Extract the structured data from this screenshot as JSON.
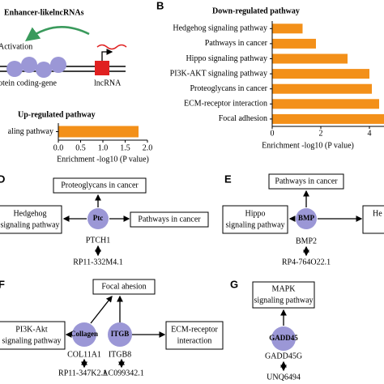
{
  "chart_data": [
    {
      "type": "barh",
      "title": "Up-regulated pathway",
      "categories": [
        "aling pathway"
      ],
      "values": [
        1.8
      ],
      "color": "#f39019",
      "xlim": [
        0,
        2
      ],
      "xticks": [
        {
          "value": 0,
          "label": "0.0"
        },
        {
          "value": 0.5,
          "label": "0.5"
        },
        {
          "value": 1,
          "label": "1.0"
        },
        {
          "value": 1.5,
          "label": "1.5"
        },
        {
          "value": 2,
          "label": "2.0"
        }
      ],
      "xlabel": "Enrichment -log10 (P value)"
    },
    {
      "type": "barh",
      "panel": "B",
      "title": "Down-regulated pathway",
      "categories": [
        "Hedgehog signaling pathway",
        "Pathways in cancer",
        "Hippo signaling pathway",
        "PI3K-AKT signaling pathway",
        "Proteoglycans in cancer",
        "ECM-receptor interaction",
        "Focal adhesion"
      ],
      "values": [
        1.25,
        1.8,
        3.1,
        4.0,
        4.1,
        4.4,
        4.8
      ],
      "color": "#f39019",
      "xlim": [
        0,
        5
      ],
      "xticks": [
        0,
        2,
        4
      ],
      "xlabel": "Enrichment -log10 (P value)"
    }
  ],
  "panel_a": {
    "title": "Enhancer-likelncRNAs",
    "activation": "Activation",
    "gene": "otein coding-gene",
    "lncrna": "lncRNA"
  },
  "panel_d": {
    "label": "D",
    "top": "Proteoglycans in cancer",
    "left": [
      "Hedgehog",
      "signaling pathway"
    ],
    "right": "Pathways in cancer",
    "node": "Ptc",
    "gene": "PTCH1",
    "lnc": "RP11-332M4.1"
  },
  "panel_e": {
    "label": "E",
    "top": "Pathways in cancer",
    "left": [
      "Hippo",
      "signaling pathway"
    ],
    "right": "He",
    "node": "BMP",
    "gene": "BMP2",
    "lnc": "RP4-764O22.1"
  },
  "panel_f": {
    "label": "F",
    "top": "Focal ahesion",
    "left": [
      "PI3K-Akt",
      "signaling pathway"
    ],
    "right": [
      "ECM-receptor",
      "interaction"
    ],
    "nodes": [
      "Collagen",
      "ITGB"
    ],
    "genes": [
      "COL11A1",
      "ITGB8"
    ],
    "lncs": [
      "RP11-347K2.1",
      "AC099342.1"
    ]
  },
  "panel_g": {
    "label": "G",
    "top": [
      "MAPK",
      "signaling pathway"
    ],
    "node": "GADD45",
    "gene": "GADD45G",
    "lnc": "UNQ6494"
  }
}
